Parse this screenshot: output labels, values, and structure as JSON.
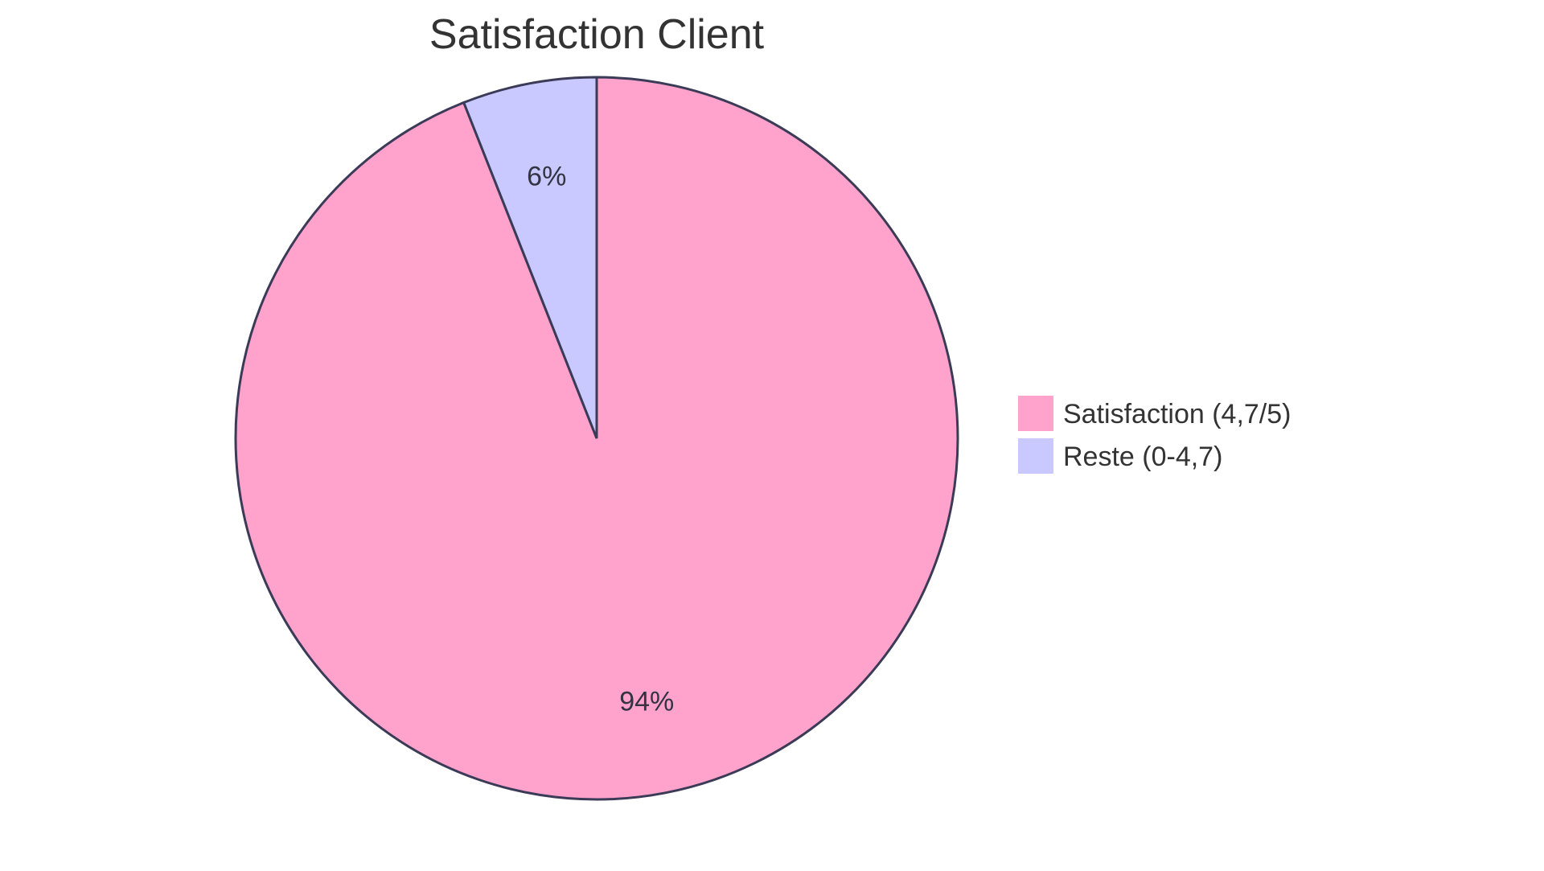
{
  "chart_data": {
    "type": "pie",
    "title": "Satisfaction Client",
    "slices": [
      {
        "label": "Satisfaction (4,7/5)",
        "value": 94,
        "display": "94%",
        "color": "#ffa3cc"
      },
      {
        "label": "Reste (0-4,7)",
        "value": 6,
        "display": "6%",
        "color": "#c9c9ff"
      }
    ],
    "stroke_color": "#3b3b58",
    "legend_position": "right"
  }
}
